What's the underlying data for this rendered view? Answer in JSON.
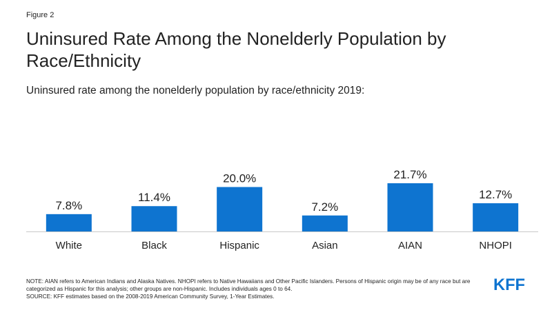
{
  "figure_label": "Figure 2",
  "title": "Uninsured Rate Among the Nonelderly Population by Race/Ethnicity",
  "subtitle": "Uninsured rate among the nonelderly population by race/ethnicity 2019:",
  "chart_data": {
    "type": "bar",
    "title": "Uninsured Rate Among the Nonelderly Population by Race/Ethnicity",
    "subtitle": "Uninsured rate among the nonelderly population by race/ethnicity 2019:",
    "categories": [
      "White",
      "Black",
      "Hispanic",
      "Asian",
      "AIAN",
      "NHOPI"
    ],
    "values": [
      7.8,
      11.4,
      20.0,
      7.2,
      21.7,
      12.7
    ],
    "data_labels": [
      "7.8%",
      "11.4%",
      "20.0%",
      "7.2%",
      "21.7%",
      "12.7%"
    ],
    "ylim": [
      0,
      25
    ],
    "grid": false,
    "bar_color": "#0e74d0"
  },
  "notes": {
    "note": "NOTE: AIAN refers to American Indians and Alaska Natives. NHOPI refers to Native Hawaiians and Other Pacific Islanders.  Persons of Hispanic origin may be of any race but are categorized as Hispanic for this analysis; other groups are non-Hispanic. Includes  individuals ages 0 to 64.",
    "source": "SOURCE: KFF estimates based on the 2008-2019 American Community Survey, 1-Year Estimates."
  },
  "logo": {
    "text": "KFF",
    "color": "#0e74d0"
  }
}
